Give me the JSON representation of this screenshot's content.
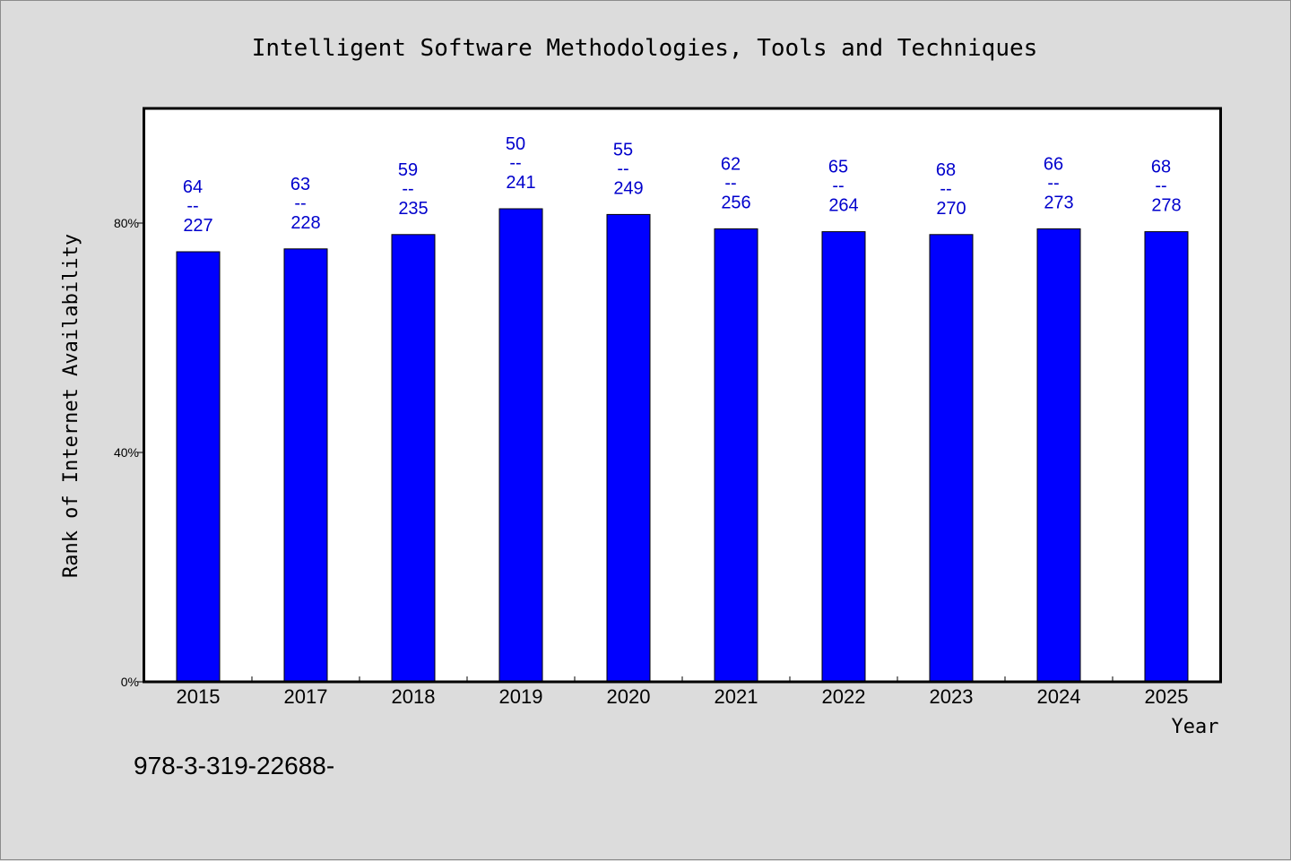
{
  "colors": {
    "background": "#dcdcdc",
    "plot_background": "#ffffff",
    "bar": "#0000ff",
    "data_label": "#0000cc"
  },
  "chart_data": {
    "type": "bar",
    "title": "Intelligent Software Methodologies, Tools and Techniques",
    "xlabel": "Year",
    "ylabel": "Rank of Internet Availability",
    "categories": [
      "2015",
      "2017",
      "2018",
      "2019",
      "2020",
      "2021",
      "2022",
      "2023",
      "2024",
      "2025"
    ],
    "series": [
      {
        "values": [
          75,
          75.5,
          78,
          82.5,
          81.5,
          79,
          78.5,
          78,
          79,
          78.5
        ]
      }
    ],
    "data_labels": [
      {
        "top": "64",
        "sep": "--",
        "bottom": "227"
      },
      {
        "top": "63",
        "sep": "--",
        "bottom": "228"
      },
      {
        "top": "59",
        "sep": "--",
        "bottom": "235"
      },
      {
        "top": "50",
        "sep": "--",
        "bottom": "241"
      },
      {
        "top": "55",
        "sep": "--",
        "bottom": "249"
      },
      {
        "top": "62",
        "sep": "--",
        "bottom": "256"
      },
      {
        "top": "65",
        "sep": "--",
        "bottom": "264"
      },
      {
        "top": "68",
        "sep": "--",
        "bottom": "270"
      },
      {
        "top": "66",
        "sep": "--",
        "bottom": "273"
      },
      {
        "top": "68",
        "sep": "--",
        "bottom": "278"
      }
    ],
    "yticks": [
      {
        "value": 0,
        "label": "0%"
      },
      {
        "value": 40,
        "label": "40%"
      },
      {
        "value": 80,
        "label": "80%"
      }
    ],
    "ylim": [
      0,
      100
    ],
    "grid": false,
    "legend": "none"
  },
  "footnote": "978-3-319-22688-"
}
